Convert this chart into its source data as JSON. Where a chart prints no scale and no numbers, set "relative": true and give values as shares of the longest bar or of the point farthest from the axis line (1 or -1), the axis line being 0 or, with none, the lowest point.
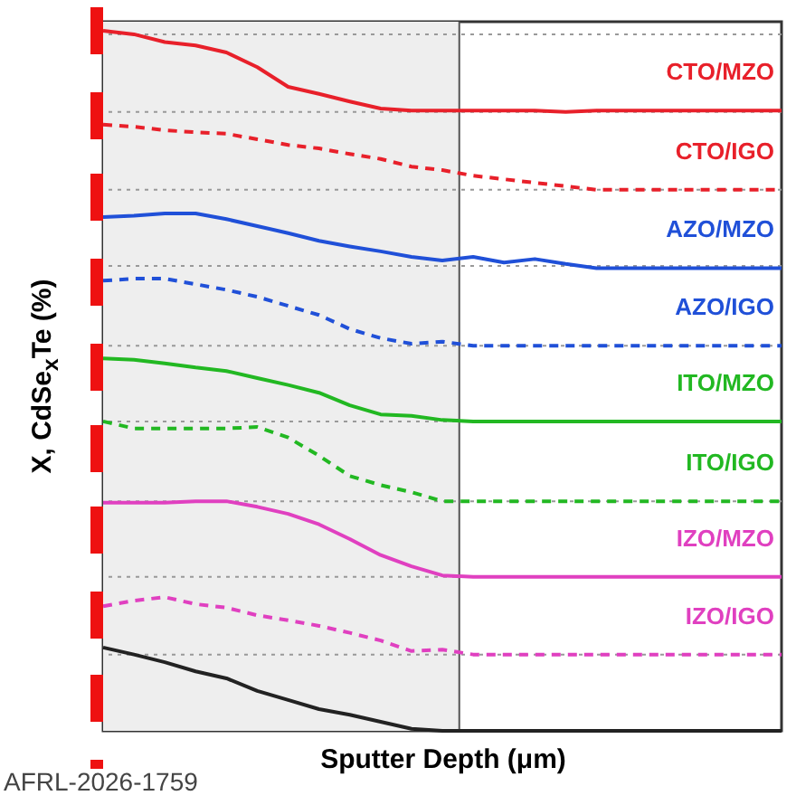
{
  "chart_data": {
    "type": "line",
    "relative": true,
    "xlabel": "Sputter Depth (μm)",
    "ylabel": "X, CdSe$_{x}$Te (%)",
    "legend": false,
    "annotations": [
      "AFRL-2026-1759"
    ],
    "categories": [
      null,
      null,
      null,
      null,
      null,
      null,
      null,
      null,
      null,
      null,
      null,
      null,
      null,
      null,
      null,
      null,
      null,
      null,
      null,
      null,
      null,
      null,
      null
    ],
    "series": [
      {
        "name": "CTO/MZO",
        "color": "#e8202a",
        "line_style": "solid",
        "values": [
          1,
          0.995,
          0.984,
          0.979,
          0.969,
          0.948,
          0.92,
          0.91,
          0.899,
          0.889,
          0.886,
          0.886,
          0.886,
          0.886,
          0.886,
          0.884,
          0.886,
          0.886,
          0.886,
          0.886,
          0.886,
          0.886,
          0.886
        ]
      },
      {
        "name": "CTO/IGO",
        "color": "#e8202a",
        "line_style": "dashed",
        "values": [
          0.866,
          0.863,
          0.858,
          0.855,
          0.853,
          0.845,
          0.837,
          0.832,
          0.824,
          0.817,
          0.806,
          0.801,
          0.793,
          0.788,
          0.783,
          0.778,
          0.773,
          0.773,
          0.773,
          0.773,
          0.773,
          0.773,
          0.773
        ]
      },
      {
        "name": "AZO/MZO",
        "color": "#2050d8",
        "line_style": "solid",
        "values": [
          0.734,
          0.736,
          0.739,
          0.739,
          0.731,
          0.721,
          0.711,
          0.7,
          0.692,
          0.685,
          0.677,
          0.672,
          0.677,
          0.669,
          0.674,
          0.667,
          0.661,
          0.661,
          0.661,
          0.661,
          0.661,
          0.661,
          0.661
        ]
      },
      {
        "name": "AZO/IGO",
        "color": "#2050d8",
        "line_style": "dashed",
        "values": [
          0.643,
          0.646,
          0.646,
          0.638,
          0.63,
          0.62,
          0.607,
          0.594,
          0.574,
          0.561,
          0.553,
          0.556,
          0.55,
          0.55,
          0.55,
          0.55,
          0.55,
          0.55,
          0.55,
          0.55,
          0.55,
          0.55,
          0.55
        ]
      },
      {
        "name": "ITO/MZO",
        "color": "#22b822",
        "line_style": "solid",
        "values": [
          0.532,
          0.53,
          0.525,
          0.519,
          0.514,
          0.504,
          0.494,
          0.483,
          0.465,
          0.452,
          0.45,
          0.444,
          0.442,
          0.442,
          0.442,
          0.442,
          0.442,
          0.442,
          0.442,
          0.442,
          0.442,
          0.442,
          0.442
        ]
      },
      {
        "name": "ITO/IGO",
        "color": "#22b822",
        "line_style": "dashed",
        "values": [
          0.442,
          0.432,
          0.432,
          0.432,
          0.432,
          0.434,
          0.419,
          0.393,
          0.364,
          0.351,
          0.341,
          0.328,
          0.328,
          0.328,
          0.328,
          0.328,
          0.328,
          0.328,
          0.328,
          0.328,
          0.328,
          0.328,
          0.328
        ]
      },
      {
        "name": "IZO/MZO",
        "color": "#e040c0",
        "line_style": "solid",
        "values": [
          0.326,
          0.326,
          0.326,
          0.328,
          0.328,
          0.32,
          0.31,
          0.295,
          0.274,
          0.251,
          0.235,
          0.222,
          0.22,
          0.22,
          0.22,
          0.22,
          0.22,
          0.22,
          0.22,
          0.22,
          0.22,
          0.22,
          0.22
        ]
      },
      {
        "name": "IZO/IGO",
        "color": "#e040c0",
        "line_style": "dashed",
        "values": [
          0.178,
          0.186,
          0.191,
          0.181,
          0.176,
          0.165,
          0.158,
          0.15,
          0.14,
          0.129,
          0.114,
          0.116,
          0.109,
          0.109,
          0.109,
          0.109,
          0.109,
          0.109,
          0.109,
          0.109,
          0.109,
          0.109,
          0.109
        ]
      },
      {
        "color": "#222222",
        "line_style": "solid",
        "values": [
          0.119,
          0.109,
          0.098,
          0.085,
          0.075,
          0.057,
          0.044,
          0.031,
          0.023,
          0.013,
          0.003,
          0,
          0,
          0,
          0,
          0,
          0,
          0,
          0,
          0,
          0,
          0,
          0
        ]
      }
    ],
    "ref_lines": [
      {
        "axis": "y",
        "value": 0.995,
        "color": "#999999",
        "line_style": "dotted"
      },
      {
        "axis": "y",
        "value": 0.884,
        "color": "#999999",
        "line_style": "dotted"
      },
      {
        "axis": "y",
        "value": 0.773,
        "color": "#999999",
        "line_style": "dotted"
      },
      {
        "axis": "y",
        "value": 0.664,
        "color": "#999999",
        "line_style": "dotted"
      },
      {
        "axis": "y",
        "value": 0.55,
        "color": "#999999",
        "line_style": "dotted"
      },
      {
        "axis": "y",
        "value": 0.442,
        "color": "#999999",
        "line_style": "dotted"
      },
      {
        "axis": "y",
        "value": 0.328,
        "color": "#999999",
        "line_style": "dotted"
      },
      {
        "axis": "y",
        "value": 0.22,
        "color": "#999999",
        "line_style": "dotted"
      },
      {
        "axis": "y",
        "value": 0.109,
        "color": "#999999",
        "line_style": "dotted"
      }
    ]
  }
}
